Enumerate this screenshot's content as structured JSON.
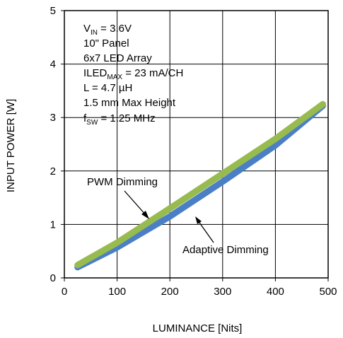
{
  "chart_data": {
    "type": "line",
    "title": "",
    "xlabel": "LUMINANCE [Nits]",
    "ylabel": "INPUT POWER [W]",
    "xlim": [
      0,
      500
    ],
    "ylim": [
      0,
      5
    ],
    "x_ticks": [
      "0",
      "100",
      "200",
      "300",
      "400",
      "500"
    ],
    "y_ticks": [
      "0",
      "1",
      "2",
      "3",
      "4",
      "5"
    ],
    "grid": true,
    "series": [
      {
        "name": "Adaptive Dimming",
        "color": "#4a7fc6",
        "x": [
          25,
          100,
          200,
          300,
          400,
          490
        ],
        "y": [
          0.2,
          0.57,
          1.15,
          1.8,
          2.48,
          3.22
        ]
      },
      {
        "name": "PWM Dimming",
        "color": "#97bb4f",
        "x": [
          25,
          100,
          200,
          300,
          400,
          490
        ],
        "y": [
          0.24,
          0.66,
          1.3,
          1.95,
          2.6,
          3.25
        ]
      }
    ],
    "annotations": {
      "pwm_label": "PWM Dimming",
      "adaptive_label": "Adaptive Dimming"
    },
    "conditions": {
      "vin_main": "V",
      "vin_sub": "IN",
      "vin_value": " = 3.6V",
      "panel": "10\" Panel",
      "array": "6x7 LED Array",
      "iled_main": "ILED",
      "iled_sub": "MAX",
      "iled_value": " = 23 mA/CH",
      "inductor": "L = 4.7 µH",
      "height": "1.5 mm Max Height",
      "fsw_main": "f",
      "fsw_sub": "SW",
      "fsw_value": " = 1.25 MHz"
    }
  }
}
